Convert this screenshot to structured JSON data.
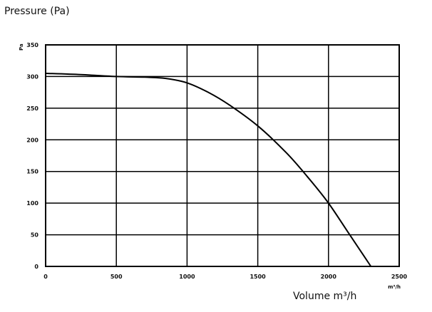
{
  "chart_data": {
    "type": "line",
    "title": "Pressure (Pa)",
    "xlabel": "Volume m³/h",
    "ylabel": "Pa",
    "x_unit": "m³/h",
    "xlim": [
      0,
      2500
    ],
    "ylim": [
      0,
      350
    ],
    "x_ticks": [
      "0",
      "500",
      "1000",
      "1500",
      "2000",
      "2500"
    ],
    "y_ticks": [
      "0",
      "50",
      "100",
      "150",
      "200",
      "250",
      "300",
      "350"
    ],
    "grid": true,
    "legend": "none",
    "line_color": "#000000",
    "series": [
      {
        "x": [
          0,
          250,
          500,
          700,
          850,
          1000,
          1150,
          1300,
          1500,
          1700,
          1850,
          2000,
          2150,
          2300
        ],
        "y": [
          305,
          303,
          300,
          299,
          297,
          290,
          275,
          255,
          222,
          180,
          142,
          100,
          50,
          0
        ]
      }
    ]
  }
}
